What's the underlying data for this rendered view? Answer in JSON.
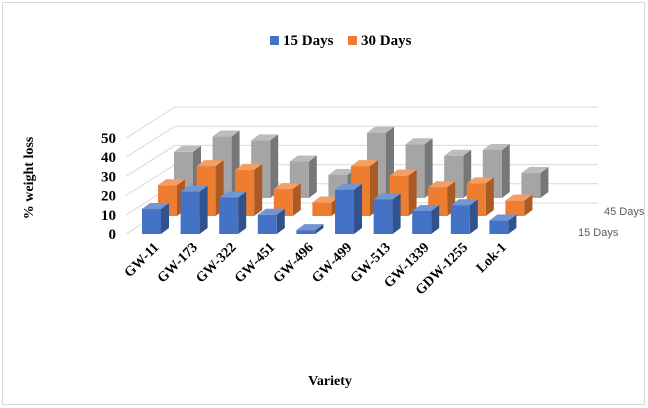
{
  "chart_data": {
    "type": "bar",
    "style": "3d-clustered-column",
    "xlabel": "Variety",
    "ylabel": "% weight loss",
    "ylim": [
      0,
      50
    ],
    "yticks": [
      0,
      10,
      20,
      30,
      40,
      50
    ],
    "legend": {
      "placement": "top-center",
      "entries": [
        "15 Days",
        "30 Days"
      ]
    },
    "depth_labels": [
      "15 Days",
      "45 Days"
    ],
    "grid": true,
    "categories": [
      "GW-11",
      "GW-173",
      "GW-322",
      "GW-451",
      "GW-496",
      "GW-499",
      "GW-513",
      "GW-1339",
      "GDW-1255",
      "Lok-1"
    ],
    "series": [
      {
        "name": "15 Days",
        "color": "#4472c4",
        "values": [
          13,
          22,
          19,
          10,
          2,
          23,
          18,
          12,
          15,
          7
        ]
      },
      {
        "name": "30 Days",
        "color": "#ed7d31",
        "values": [
          16,
          26,
          24,
          14,
          7,
          26,
          21,
          15,
          17,
          8
        ]
      },
      {
        "name": "45 Days",
        "color": "#a5a5a5",
        "values": [
          24,
          32,
          30,
          19,
          12,
          34,
          28,
          22,
          25,
          13
        ]
      }
    ]
  }
}
